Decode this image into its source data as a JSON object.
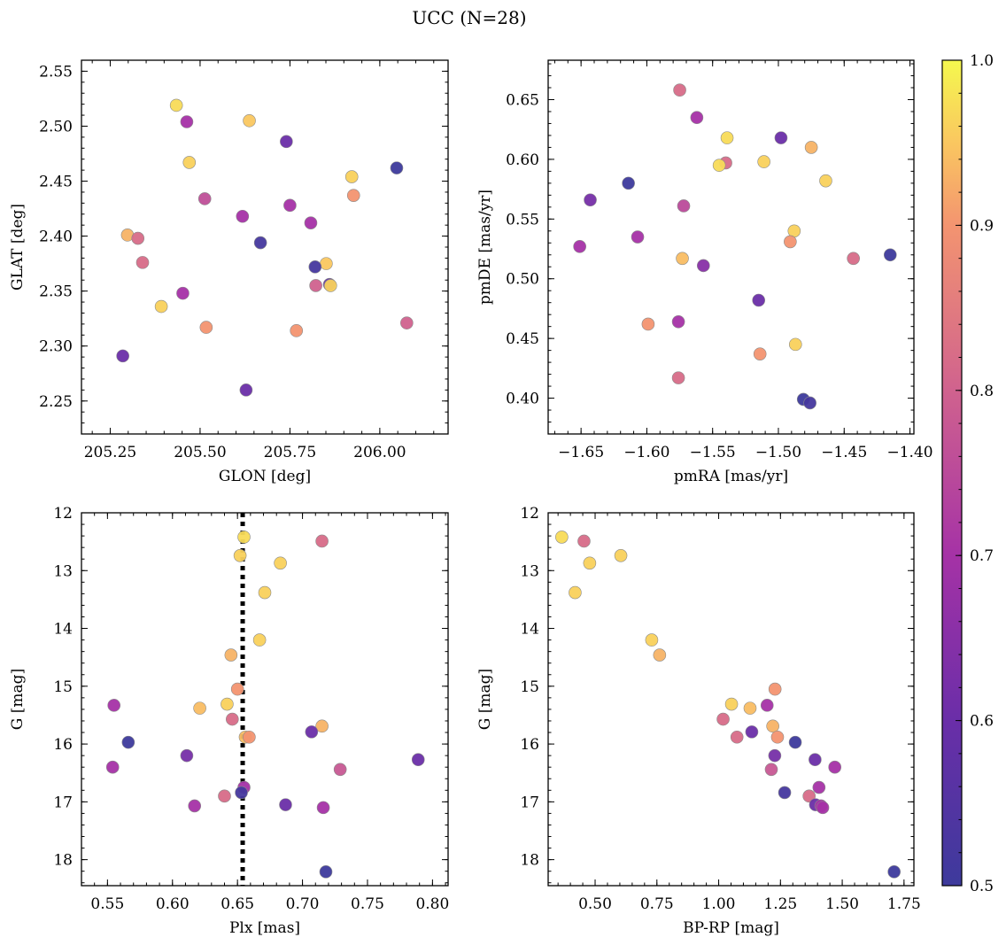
{
  "figure": {
    "title": "UCC (N=28)"
  },
  "chart_data": [
    {
      "type": "scatter",
      "panel": "top-left",
      "xlabel": "GLON [deg]",
      "ylabel": "GLAT [deg]",
      "xlim": [
        205.17,
        206.19
      ],
      "ylim": [
        2.22,
        2.56
      ],
      "xticks": [
        205.25,
        205.5,
        205.75,
        206.0
      ],
      "xtick_labels": [
        "205.25",
        "205.50",
        "205.75",
        "206.00"
      ],
      "yticks": [
        2.25,
        2.3,
        2.35,
        2.4,
        2.45,
        2.5,
        2.55
      ],
      "ytick_labels": [
        "2.25",
        "2.30",
        "2.35",
        "2.40",
        "2.45",
        "2.50",
        "2.55"
      ],
      "points": [
        {
          "x": 205.434,
          "y": 2.519,
          "c": 0.97
        },
        {
          "x": 205.463,
          "y": 2.504,
          "c": 0.7
        },
        {
          "x": 205.637,
          "y": 2.505,
          "c": 0.95
        },
        {
          "x": 205.74,
          "y": 2.486,
          "c": 0.6
        },
        {
          "x": 205.47,
          "y": 2.467,
          "c": 0.96
        },
        {
          "x": 206.047,
          "y": 2.462,
          "c": 0.5
        },
        {
          "x": 205.922,
          "y": 2.454,
          "c": 0.96
        },
        {
          "x": 205.927,
          "y": 2.437,
          "c": 0.9
        },
        {
          "x": 205.513,
          "y": 2.434,
          "c": 0.76
        },
        {
          "x": 205.75,
          "y": 2.428,
          "c": 0.7
        },
        {
          "x": 205.618,
          "y": 2.418,
          "c": 0.7
        },
        {
          "x": 205.808,
          "y": 2.412,
          "c": 0.7
        },
        {
          "x": 205.298,
          "y": 2.401,
          "c": 0.93
        },
        {
          "x": 205.327,
          "y": 2.398,
          "c": 0.82
        },
        {
          "x": 205.668,
          "y": 2.394,
          "c": 0.52
        },
        {
          "x": 205.34,
          "y": 2.376,
          "c": 0.82
        },
        {
          "x": 205.851,
          "y": 2.375,
          "c": 0.95
        },
        {
          "x": 205.82,
          "y": 2.372,
          "c": 0.52
        },
        {
          "x": 205.86,
          "y": 2.356,
          "c": 0.58
        },
        {
          "x": 205.863,
          "y": 2.355,
          "c": 0.96
        },
        {
          "x": 205.822,
          "y": 2.355,
          "c": 0.8
        },
        {
          "x": 205.452,
          "y": 2.348,
          "c": 0.7
        },
        {
          "x": 205.392,
          "y": 2.336,
          "c": 0.96
        },
        {
          "x": 206.075,
          "y": 2.321,
          "c": 0.8
        },
        {
          "x": 205.517,
          "y": 2.317,
          "c": 0.9
        },
        {
          "x": 205.768,
          "y": 2.314,
          "c": 0.9
        },
        {
          "x": 205.285,
          "y": 2.291,
          "c": 0.6
        },
        {
          "x": 205.628,
          "y": 2.26,
          "c": 0.6
        }
      ]
    },
    {
      "type": "scatter",
      "panel": "top-right",
      "xlabel": "pmRA [mas/yr]",
      "ylabel": "pmDE [mas/yr]",
      "xlim": [
        -1.675,
        -1.397
      ],
      "ylim": [
        0.37,
        0.683
      ],
      "xticks": [
        -1.65,
        -1.6,
        -1.55,
        -1.5,
        -1.45,
        -1.4
      ],
      "xtick_labels": [
        "−1.65",
        "−1.60",
        "−1.55",
        "−1.50",
        "−1.45",
        "−1.40"
      ],
      "yticks": [
        0.4,
        0.45,
        0.5,
        0.55,
        0.6,
        0.65
      ],
      "ytick_labels": [
        "0.40",
        "0.45",
        "0.50",
        "0.55",
        "0.60",
        "0.65"
      ],
      "points": [
        {
          "x": -1.575,
          "y": 0.658,
          "c": 0.82
        },
        {
          "x": -1.562,
          "y": 0.635,
          "c": 0.7
        },
        {
          "x": -1.539,
          "y": 0.618,
          "c": 0.97
        },
        {
          "x": -1.498,
          "y": 0.618,
          "c": 0.6
        },
        {
          "x": -1.475,
          "y": 0.61,
          "c": 0.93
        },
        {
          "x": -1.54,
          "y": 0.597,
          "c": 0.82
        },
        {
          "x": -1.545,
          "y": 0.595,
          "c": 0.97
        },
        {
          "x": -1.511,
          "y": 0.598,
          "c": 0.96
        },
        {
          "x": -1.464,
          "y": 0.582,
          "c": 0.96
        },
        {
          "x": -1.614,
          "y": 0.58,
          "c": 0.5
        },
        {
          "x": -1.643,
          "y": 0.566,
          "c": 0.62
        },
        {
          "x": -1.572,
          "y": 0.561,
          "c": 0.75
        },
        {
          "x": -1.607,
          "y": 0.535,
          "c": 0.7
        },
        {
          "x": -1.651,
          "y": 0.527,
          "c": 0.7
        },
        {
          "x": -1.488,
          "y": 0.54,
          "c": 0.96
        },
        {
          "x": -1.491,
          "y": 0.531,
          "c": 0.9
        },
        {
          "x": -1.573,
          "y": 0.517,
          "c": 0.94
        },
        {
          "x": -1.443,
          "y": 0.517,
          "c": 0.82
        },
        {
          "x": -1.415,
          "y": 0.52,
          "c": 0.5
        },
        {
          "x": -1.557,
          "y": 0.511,
          "c": 0.65
        },
        {
          "x": -1.515,
          "y": 0.482,
          "c": 0.6
        },
        {
          "x": -1.576,
          "y": 0.464,
          "c": 0.7
        },
        {
          "x": -1.599,
          "y": 0.462,
          "c": 0.9
        },
        {
          "x": -1.487,
          "y": 0.445,
          "c": 0.96
        },
        {
          "x": -1.514,
          "y": 0.437,
          "c": 0.9
        },
        {
          "x": -1.576,
          "y": 0.417,
          "c": 0.82
        },
        {
          "x": -1.481,
          "y": 0.399,
          "c": 0.5
        },
        {
          "x": -1.476,
          "y": 0.396,
          "c": 0.52
        }
      ]
    },
    {
      "type": "scatter",
      "panel": "bottom-left",
      "xlabel": "Plx [mas]",
      "ylabel": "G [mag]",
      "xlim": [
        0.53,
        0.812
      ],
      "ylim": [
        18.45,
        12.0
      ],
      "y_inverted": true,
      "vline": 0.654,
      "vline_style": "dotted",
      "xticks": [
        0.55,
        0.6,
        0.65,
        0.7,
        0.75,
        0.8
      ],
      "xtick_labels": [
        "0.55",
        "0.60",
        "0.65",
        "0.70",
        "0.75",
        "0.80"
      ],
      "yticks": [
        12,
        13,
        14,
        15,
        16,
        17,
        18
      ],
      "ytick_labels": [
        "12",
        "13",
        "14",
        "15",
        "16",
        "17",
        "18"
      ],
      "points": [
        {
          "x": 0.655,
          "y": 12.42,
          "c": 0.97
        },
        {
          "x": 0.715,
          "y": 12.49,
          "c": 0.82
        },
        {
          "x": 0.652,
          "y": 12.74,
          "c": 0.96
        },
        {
          "x": 0.683,
          "y": 12.87,
          "c": 0.96
        },
        {
          "x": 0.671,
          "y": 13.38,
          "c": 0.96
        },
        {
          "x": 0.667,
          "y": 14.2,
          "c": 0.96
        },
        {
          "x": 0.645,
          "y": 14.46,
          "c": 0.93
        },
        {
          "x": 0.65,
          "y": 15.05,
          "c": 0.9
        },
        {
          "x": 0.555,
          "y": 15.33,
          "c": 0.7
        },
        {
          "x": 0.642,
          "y": 15.31,
          "c": 0.96
        },
        {
          "x": 0.621,
          "y": 15.38,
          "c": 0.94
        },
        {
          "x": 0.646,
          "y": 15.57,
          "c": 0.82
        },
        {
          "x": 0.715,
          "y": 15.69,
          "c": 0.93
        },
        {
          "x": 0.707,
          "y": 15.79,
          "c": 0.6
        },
        {
          "x": 0.656,
          "y": 15.88,
          "c": 0.94
        },
        {
          "x": 0.659,
          "y": 15.88,
          "c": 0.9
        },
        {
          "x": 0.566,
          "y": 15.97,
          "c": 0.5
        },
        {
          "x": 0.611,
          "y": 16.2,
          "c": 0.62
        },
        {
          "x": 0.789,
          "y": 16.27,
          "c": 0.6
        },
        {
          "x": 0.554,
          "y": 16.4,
          "c": 0.7
        },
        {
          "x": 0.729,
          "y": 16.44,
          "c": 0.78
        },
        {
          "x": 0.655,
          "y": 16.75,
          "c": 0.7
        },
        {
          "x": 0.653,
          "y": 16.84,
          "c": 0.52
        },
        {
          "x": 0.64,
          "y": 16.9,
          "c": 0.82
        },
        {
          "x": 0.617,
          "y": 17.07,
          "c": 0.7
        },
        {
          "x": 0.687,
          "y": 17.05,
          "c": 0.6
        },
        {
          "x": 0.716,
          "y": 17.1,
          "c": 0.7
        },
        {
          "x": 0.718,
          "y": 18.21,
          "c": 0.5
        }
      ]
    },
    {
      "type": "scatter",
      "panel": "bottom-right",
      "xlabel": "BP-RP [mag]",
      "ylabel": "G [mag]",
      "xlim": [
        0.31,
        1.79
      ],
      "ylim": [
        18.45,
        12.0
      ],
      "y_inverted": true,
      "xticks": [
        0.5,
        0.75,
        1.0,
        1.25,
        1.5,
        1.75
      ],
      "xtick_labels": [
        "0.50",
        "0.75",
        "1.00",
        "1.25",
        "1.50",
        "1.75"
      ],
      "yticks": [
        12,
        13,
        14,
        15,
        16,
        17,
        18
      ],
      "ytick_labels": [
        "12",
        "13",
        "14",
        "15",
        "16",
        "17",
        "18"
      ],
      "points": [
        {
          "x": 0.365,
          "y": 12.42,
          "c": 0.97
        },
        {
          "x": 0.455,
          "y": 12.49,
          "c": 0.82
        },
        {
          "x": 0.478,
          "y": 12.87,
          "c": 0.96
        },
        {
          "x": 0.604,
          "y": 12.74,
          "c": 0.96
        },
        {
          "x": 0.419,
          "y": 13.38,
          "c": 0.96
        },
        {
          "x": 0.729,
          "y": 14.2,
          "c": 0.96
        },
        {
          "x": 0.761,
          "y": 14.46,
          "c": 0.93
        },
        {
          "x": 1.228,
          "y": 15.05,
          "c": 0.9
        },
        {
          "x": 1.052,
          "y": 15.31,
          "c": 0.96
        },
        {
          "x": 1.127,
          "y": 15.38,
          "c": 0.94
        },
        {
          "x": 1.196,
          "y": 15.33,
          "c": 0.7
        },
        {
          "x": 1.018,
          "y": 15.57,
          "c": 0.82
        },
        {
          "x": 1.219,
          "y": 15.69,
          "c": 0.93
        },
        {
          "x": 1.134,
          "y": 15.79,
          "c": 0.6
        },
        {
          "x": 1.074,
          "y": 15.88,
          "c": 0.82
        },
        {
          "x": 1.238,
          "y": 15.88,
          "c": 0.9
        },
        {
          "x": 1.31,
          "y": 15.97,
          "c": 0.5
        },
        {
          "x": 1.227,
          "y": 16.2,
          "c": 0.62
        },
        {
          "x": 1.39,
          "y": 16.27,
          "c": 0.6
        },
        {
          "x": 1.47,
          "y": 16.4,
          "c": 0.7
        },
        {
          "x": 1.213,
          "y": 16.44,
          "c": 0.78
        },
        {
          "x": 1.406,
          "y": 16.75,
          "c": 0.7
        },
        {
          "x": 1.267,
          "y": 16.84,
          "c": 0.52
        },
        {
          "x": 1.366,
          "y": 16.9,
          "c": 0.82
        },
        {
          "x": 1.392,
          "y": 17.05,
          "c": 0.6
        },
        {
          "x": 1.414,
          "y": 17.07,
          "c": 0.7
        },
        {
          "x": 1.421,
          "y": 17.1,
          "c": 0.7
        },
        {
          "x": 1.71,
          "y": 18.21,
          "c": 0.5
        }
      ]
    }
  ],
  "colorbar": {
    "colormap": "plasma",
    "range": [
      0.5,
      1.0
    ],
    "ticks": [
      0.5,
      0.6,
      0.7,
      0.8,
      0.9,
      1.0
    ],
    "tick_labels": [
      "0.5",
      "0.6",
      "0.7",
      "0.8",
      "0.9",
      "1.0"
    ]
  }
}
